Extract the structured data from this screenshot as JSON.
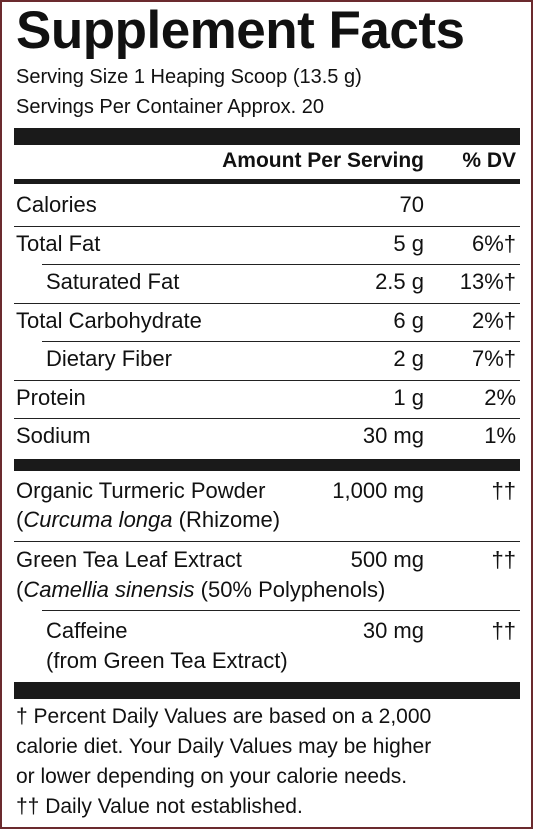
{
  "title": "Supplement Facts",
  "serving_size": "Serving Size 1 Heaping Scoop (13.5 g)",
  "servings_per_container": "Servings Per Container Approx. 20",
  "header": {
    "amount": "Amount Per Serving",
    "dv": "% DV"
  },
  "nutrients": [
    {
      "name": "Calories",
      "amount": "70",
      "dv": ""
    },
    {
      "name": "Total Fat",
      "amount": "5 g",
      "dv": "6%†"
    },
    {
      "name": "Saturated Fat",
      "amount": "2.5 g",
      "dv": "13%†"
    },
    {
      "name": "Total Carbohydrate",
      "amount": "6 g",
      "dv": "2%†"
    },
    {
      "name": "Dietary Fiber",
      "amount": "2 g",
      "dv": "7%†"
    },
    {
      "name": "Protein",
      "amount": "1 g",
      "dv": "2%"
    },
    {
      "name": "Sodium",
      "amount": "30 mg",
      "dv": "1%"
    }
  ],
  "ingredients": [
    {
      "name": "Organic Turmeric Powder",
      "amount": "1,000 mg",
      "dv": "††",
      "source_italic": "Curcuma longa",
      "source_rest": " (Rhizome)"
    },
    {
      "name": "Green Tea Leaf Extract",
      "amount": "500 mg",
      "dv": "††",
      "source_italic": "Camellia sinensis",
      "source_rest": " (50% Polyphenols)"
    },
    {
      "name": "Caffeine",
      "amount": "30 mg",
      "dv": "††",
      "source_plain": "(from Green Tea Extract)"
    }
  ],
  "footnotes": [
    "† Percent Daily Values are based on a 2,000",
    "calorie diet. Your Daily Values may be higher",
    "or lower depending on your calorie needs.",
    "†† Daily Value not established."
  ],
  "colors": {
    "border": "#6b2a2e",
    "bar": "#1a1a1a",
    "text": "#111111"
  }
}
